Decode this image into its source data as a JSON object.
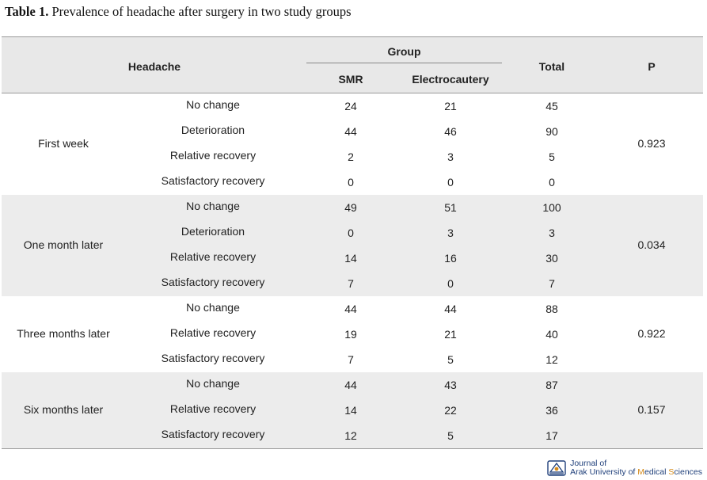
{
  "caption": {
    "label": "Table 1.",
    "text": " Prevalence of headache after surgery in two study groups"
  },
  "header": {
    "headache": "Headache",
    "group": "Group",
    "smr": "SMR",
    "electrocautery": "Electrocautery",
    "total": "Total",
    "p": "P"
  },
  "sections": [
    {
      "label": "First week",
      "p": "0.923",
      "rows": [
        {
          "sub": "No change",
          "smr": "24",
          "ele": "21",
          "total": "45"
        },
        {
          "sub": "Deterioration",
          "smr": "44",
          "ele": "46",
          "total": "90"
        },
        {
          "sub": "Relative recovery",
          "smr": "2",
          "ele": "3",
          "total": "5"
        },
        {
          "sub": "Satisfactory recovery",
          "smr": "0",
          "ele": "0",
          "total": "0"
        }
      ]
    },
    {
      "label": "One month later",
      "p": "0.034",
      "rows": [
        {
          "sub": "No change",
          "smr": "49",
          "ele": "51",
          "total": "100"
        },
        {
          "sub": "Deterioration",
          "smr": "0",
          "ele": "3",
          "total": "3"
        },
        {
          "sub": "Relative recovery",
          "smr": "14",
          "ele": "16",
          "total": "30"
        },
        {
          "sub": "Satisfactory recovery",
          "smr": "7",
          "ele": "0",
          "total": "7"
        }
      ]
    },
    {
      "label": "Three months later",
      "p": "0.922",
      "rows": [
        {
          "sub": "No change",
          "smr": "44",
          "ele": "44",
          "total": "88"
        },
        {
          "sub": "Relative recovery",
          "smr": "19",
          "ele": "21",
          "total": "40"
        },
        {
          "sub": "Satisfactory recovery",
          "smr": "7",
          "ele": "5",
          "total": "12"
        }
      ]
    },
    {
      "label": "Six months later",
      "p": "0.157",
      "rows": [
        {
          "sub": "No change",
          "smr": "44",
          "ele": "43",
          "total": "87"
        },
        {
          "sub": "Relative recovery",
          "smr": "14",
          "ele": "22",
          "total": "36"
        },
        {
          "sub": "Satisfactory recovery",
          "smr": "12",
          "ele": "5",
          "total": "17"
        }
      ]
    }
  ],
  "footer": {
    "line1": "Journal of",
    "arak": "Arak University of ",
    "medical": "M",
    "edical": "edical ",
    "sciences": "S",
    "ciences": "ciences"
  },
  "colors": {
    "shade": "#ececec",
    "header_bg": "#e8e8e8",
    "journal_blue": "#1f3f7a",
    "journal_orange": "#d48a1a"
  }
}
